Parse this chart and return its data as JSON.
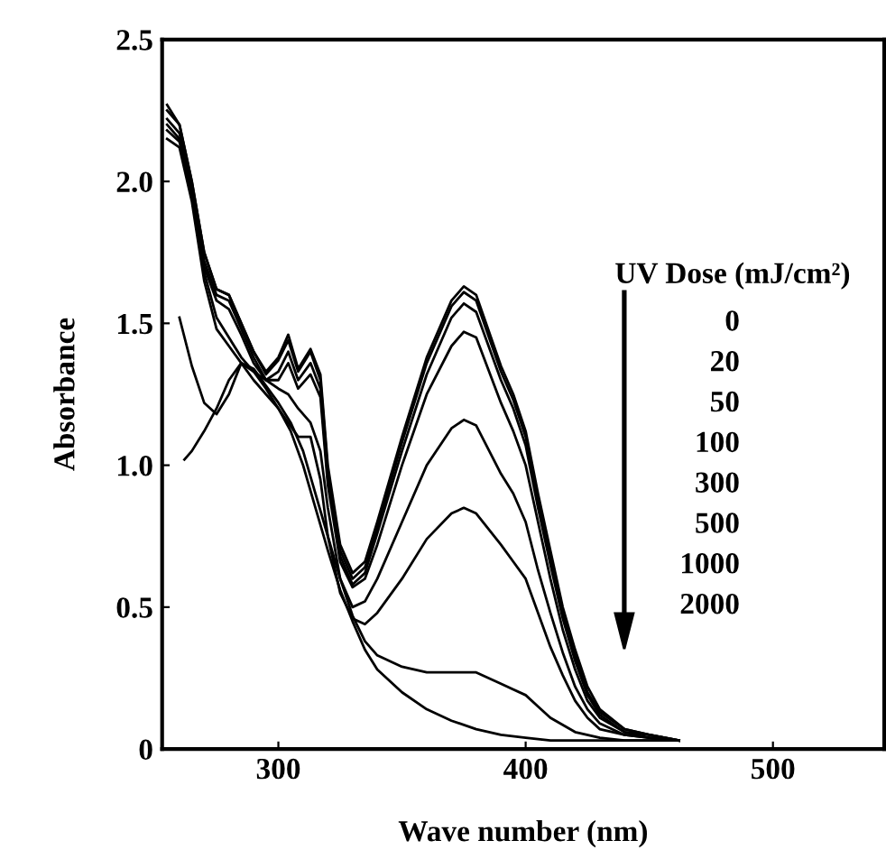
{
  "chart_data": {
    "type": "line",
    "xlabel": "Wave number (nm)",
    "ylabel": "Absorbance",
    "xlim": [
      253,
      545
    ],
    "ylim": [
      0,
      2.5
    ],
    "xticks": [
      300,
      400,
      500
    ],
    "yticks": [
      0,
      0.5,
      {
        "value": 1,
        "label": "1.0"
      },
      1.5,
      {
        "value": 2,
        "label": "2.0"
      },
      2.5
    ],
    "grid": false,
    "legend": false,
    "marker": "none",
    "line_style": "solid",
    "annotations": [
      "UV Dose (mJ/cm²)",
      "0",
      "20",
      "50",
      "100",
      "300",
      "500",
      "1000",
      "2000"
    ],
    "x": [
      255,
      260,
      265,
      270,
      275,
      280,
      285,
      290,
      295,
      300,
      304,
      308,
      313,
      317,
      320,
      325,
      330,
      335,
      340,
      350,
      360,
      370,
      375,
      380,
      390,
      395,
      400,
      405,
      410,
      415,
      420,
      425,
      430,
      440,
      450,
      462
    ],
    "series": [
      {
        "color": "#000000",
        "values": [
          2.25,
          2.2,
          2.0,
          1.75,
          1.62,
          1.6,
          1.5,
          1.4,
          1.33,
          1.38,
          1.46,
          1.34,
          1.41,
          1.32,
          1.0,
          0.72,
          0.62,
          0.66,
          0.8,
          1.1,
          1.38,
          1.58,
          1.63,
          1.6,
          1.35,
          1.25,
          1.12,
          0.9,
          0.7,
          0.5,
          0.35,
          0.22,
          0.14,
          0.07,
          0.05,
          0.03
        ]
      },
      {
        "color": "#000000",
        "values": [
          2.27,
          2.2,
          2.0,
          1.75,
          1.62,
          1.6,
          1.5,
          1.4,
          1.32,
          1.37,
          1.44,
          1.33,
          1.4,
          1.3,
          0.98,
          0.7,
          0.6,
          0.64,
          0.78,
          1.08,
          1.36,
          1.56,
          1.61,
          1.58,
          1.33,
          1.23,
          1.1,
          0.88,
          0.68,
          0.48,
          0.33,
          0.2,
          0.13,
          0.07,
          0.05,
          0.03
        ]
      },
      {
        "color": "#000000",
        "values": [
          2.22,
          2.17,
          1.98,
          1.72,
          1.6,
          1.58,
          1.48,
          1.38,
          1.3,
          1.33,
          1.4,
          1.3,
          1.36,
          1.27,
          0.95,
          0.68,
          0.58,
          0.62,
          0.76,
          1.05,
          1.32,
          1.52,
          1.57,
          1.54,
          1.3,
          1.2,
          1.07,
          0.85,
          0.65,
          0.46,
          0.31,
          0.19,
          0.12,
          0.06,
          0.05,
          0.03
        ]
      },
      {
        "color": "#000000",
        "values": [
          2.2,
          2.15,
          1.96,
          1.7,
          1.58,
          1.55,
          1.46,
          1.36,
          1.3,
          1.3,
          1.36,
          1.27,
          1.32,
          1.24,
          0.93,
          0.66,
          0.57,
          0.6,
          0.72,
          1.0,
          1.25,
          1.42,
          1.47,
          1.45,
          1.22,
          1.12,
          1.0,
          0.8,
          0.6,
          0.42,
          0.28,
          0.17,
          0.11,
          0.06,
          0.04,
          0.03
        ]
      },
      {
        "color": "#000000",
        "values": [
          2.18,
          2.14,
          1.95,
          1.68,
          1.52,
          1.45,
          1.38,
          1.33,
          1.3,
          1.27,
          1.25,
          1.2,
          1.15,
          1.05,
          0.85,
          0.6,
          0.5,
          0.52,
          0.6,
          0.8,
          1.0,
          1.13,
          1.16,
          1.14,
          0.97,
          0.9,
          0.8,
          0.63,
          0.48,
          0.34,
          0.22,
          0.14,
          0.09,
          0.05,
          0.04,
          0.03
        ]
      },
      {
        "color": "#000000",
        "values": [
          2.15,
          2.12,
          1.93,
          1.65,
          1.48,
          1.42,
          1.36,
          1.3,
          1.25,
          1.2,
          1.15,
          1.1,
          1.1,
          0.95,
          0.75,
          0.55,
          0.46,
          0.44,
          0.48,
          0.6,
          0.74,
          0.83,
          0.85,
          0.83,
          0.72,
          0.66,
          0.6,
          0.48,
          0.36,
          0.26,
          0.17,
          0.11,
          0.07,
          0.05,
          0.04,
          0.03
        ]
      },
      {
        "color": "#000000",
        "x": [
          260,
          265,
          270,
          275,
          280,
          285,
          290,
          295,
          300,
          305,
          310,
          315,
          320,
          325,
          330,
          335,
          340,
          350,
          360,
          370,
          380,
          390,
          400,
          405,
          410,
          420,
          430,
          440,
          450,
          462
        ],
        "values": [
          1.52,
          1.35,
          1.22,
          1.18,
          1.25,
          1.36,
          1.34,
          1.28,
          1.22,
          1.15,
          1.05,
          0.9,
          0.75,
          0.6,
          0.47,
          0.38,
          0.33,
          0.29,
          0.27,
          0.27,
          0.27,
          0.23,
          0.19,
          0.15,
          0.11,
          0.06,
          0.04,
          0.03,
          0.03,
          0.03
        ]
      },
      {
        "color": "#000000",
        "x": [
          262,
          265,
          270,
          275,
          280,
          285,
          290,
          295,
          300,
          305,
          310,
          315,
          320,
          325,
          330,
          335,
          340,
          350,
          360,
          370,
          380,
          390,
          400,
          410,
          420,
          430,
          440,
          450,
          462
        ],
        "values": [
          1.02,
          1.05,
          1.12,
          1.2,
          1.3,
          1.36,
          1.33,
          1.27,
          1.2,
          1.12,
          1.0,
          0.85,
          0.7,
          0.56,
          0.45,
          0.35,
          0.28,
          0.2,
          0.14,
          0.1,
          0.07,
          0.05,
          0.04,
          0.03,
          0.03,
          0.03,
          0.03,
          0.03,
          0.03
        ]
      }
    ]
  }
}
